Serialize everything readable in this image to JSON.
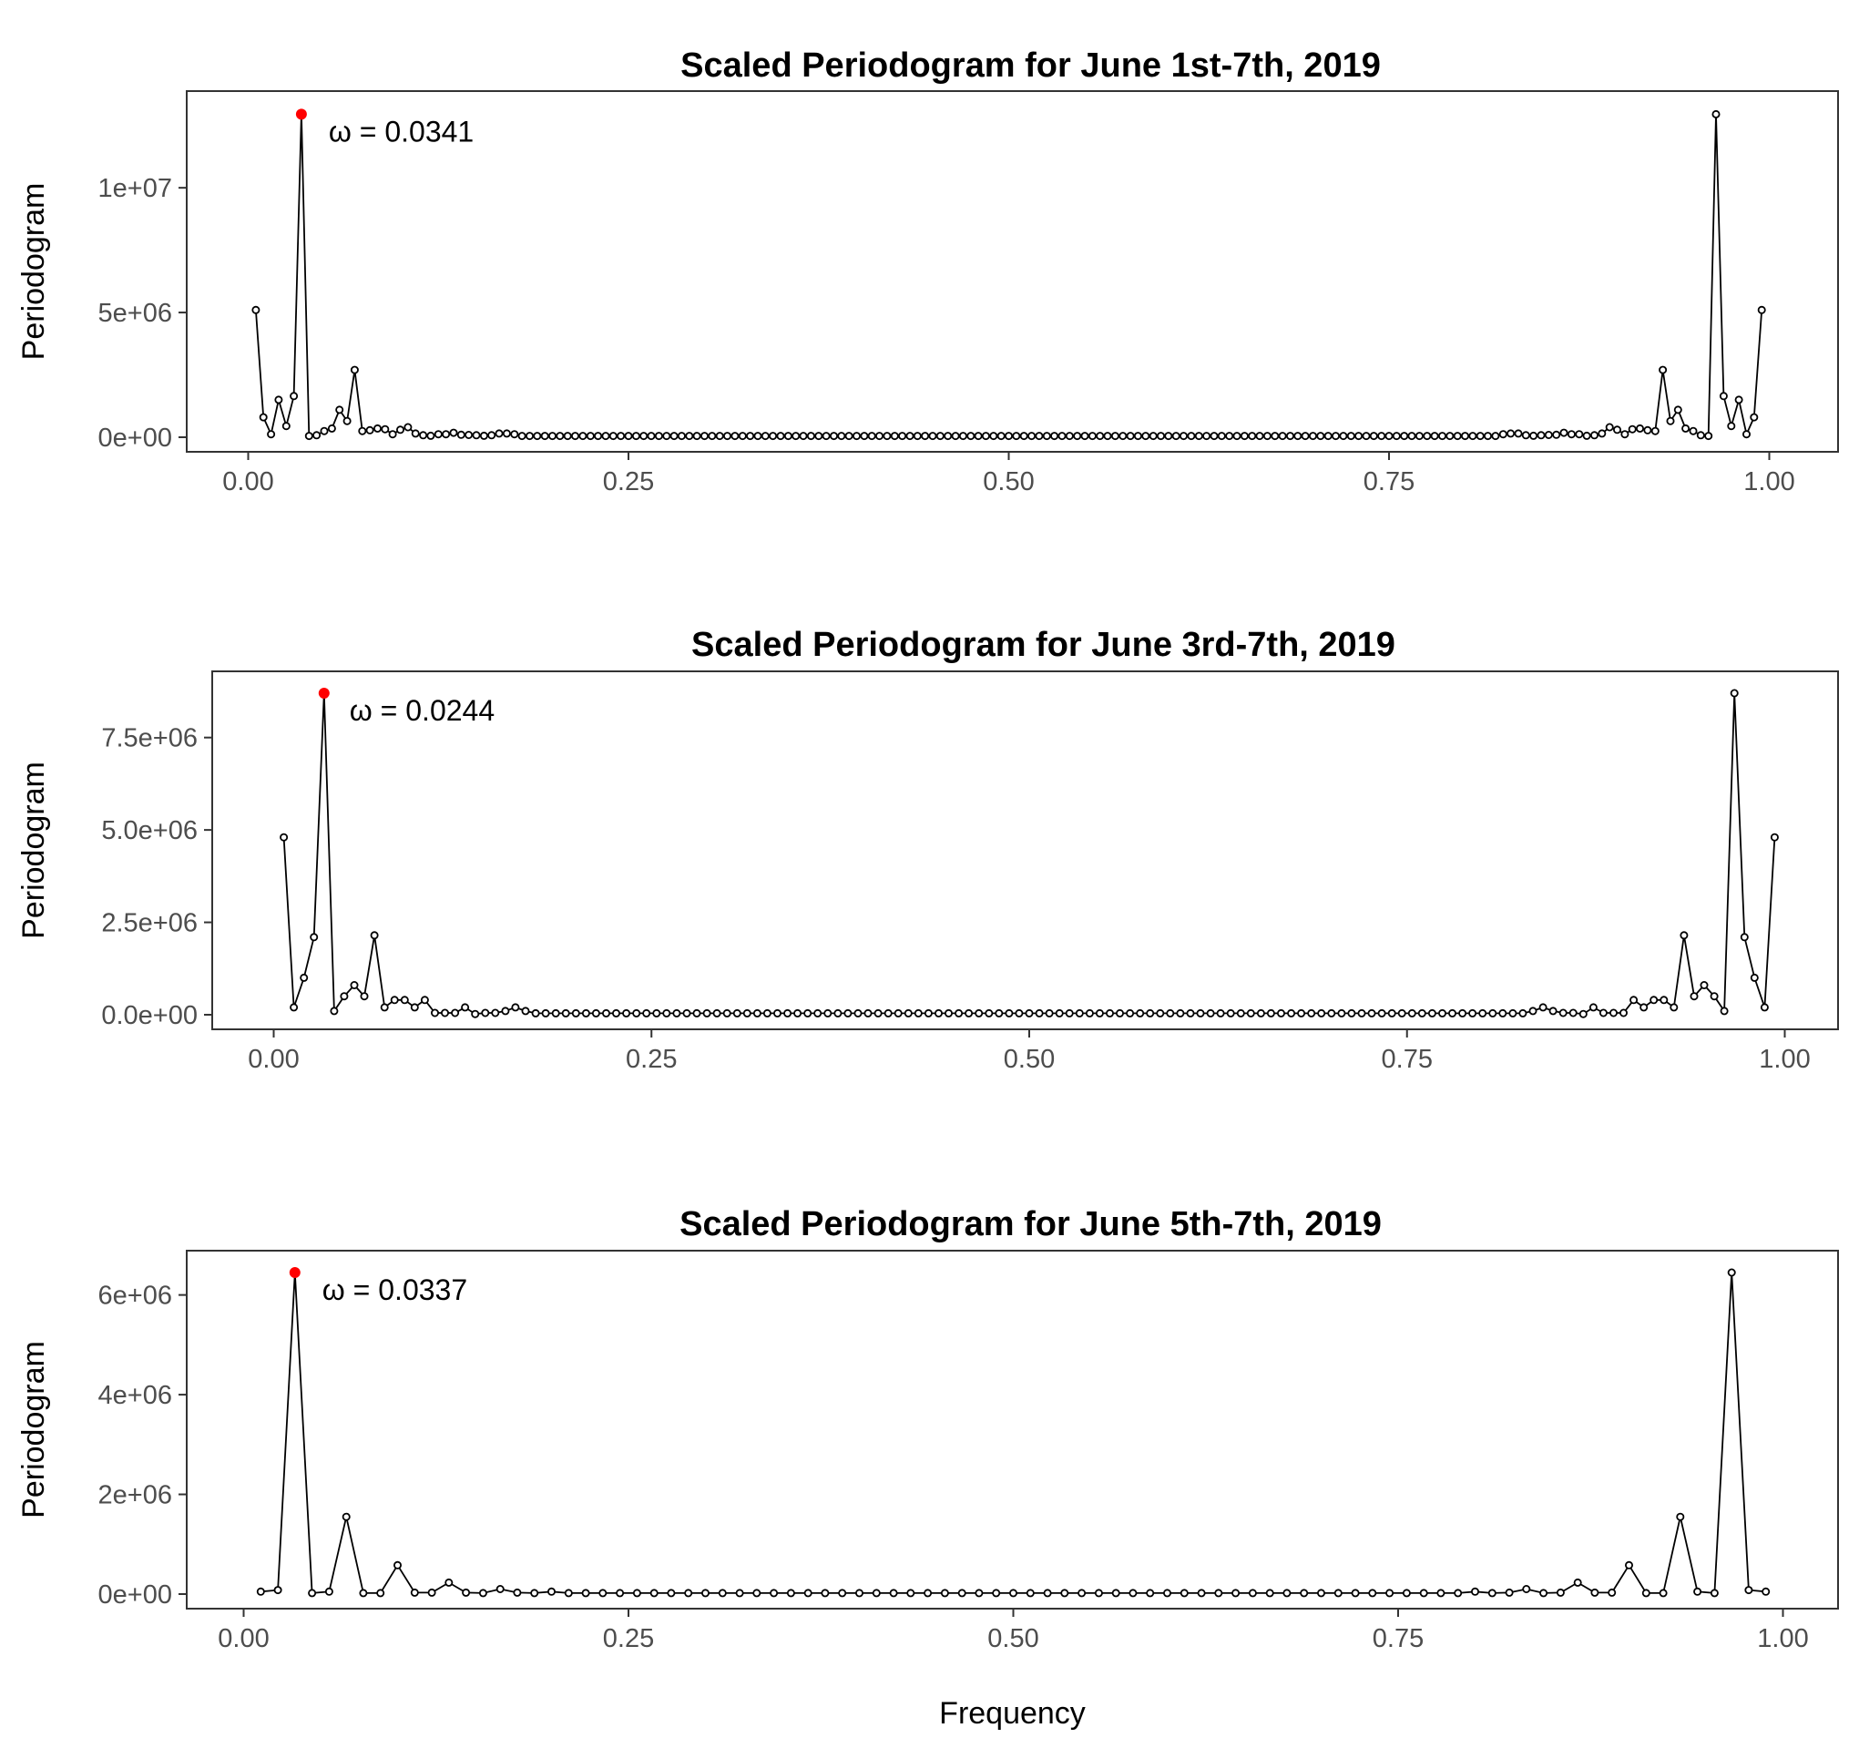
{
  "chart_data": [
    {
      "type": "line",
      "title": "Scaled Periodogram for June 1st-7th, 2019",
      "xlabel": "",
      "ylabel": "Periodogram",
      "xlim": [
        0,
        1
      ],
      "ylim": [
        0,
        13000000
      ],
      "x_ticks": [
        0,
        0.25,
        0.5,
        0.75,
        1.0
      ],
      "x_tick_labels": [
        "0.00",
        "0.25",
        "0.50",
        "0.75",
        "1.00"
      ],
      "y_ticks": [
        0,
        5000000,
        10000000
      ],
      "y_tick_labels": [
        "0e+00",
        "5e+06",
        "1e+07"
      ],
      "grid": false,
      "n_points": 199,
      "head_values": [
        5100000,
        800000,
        120000,
        1500000,
        450000,
        1650000,
        12950000,
        50000,
        80000,
        250000,
        350000,
        1100000,
        650000,
        2700000,
        250000,
        280000,
        350000,
        320000,
        120000,
        300000,
        400000,
        150000,
        80000,
        60000,
        120000,
        120000,
        180000,
        100000,
        90000,
        80000,
        60000,
        80000,
        150000,
        150000,
        120000
      ],
      "baseline_value": 50000,
      "peak": {
        "frequency": 0.0341,
        "value": 12950000,
        "label": "ω = 0.0341",
        "color": "#ff0000"
      }
    },
    {
      "type": "line",
      "title": "Scaled Periodogram for June 3rd-7th, 2019",
      "xlabel": "",
      "ylabel": "Periodogram",
      "xlim": [
        0,
        1
      ],
      "ylim": [
        0,
        8700000
      ],
      "x_ticks": [
        0,
        0.25,
        0.5,
        0.75,
        1.0
      ],
      "x_tick_labels": [
        "0.00",
        "0.25",
        "0.50",
        "0.75",
        "1.00"
      ],
      "y_ticks": [
        0,
        2500000,
        5000000,
        7500000
      ],
      "y_tick_labels": [
        "0.0e+00",
        "2.5e+06",
        "5.0e+06",
        "7.5e+06"
      ],
      "grid": false,
      "n_points": 149,
      "head_values": [
        4800000,
        200000,
        1000000,
        2100000,
        8700000,
        100000,
        500000,
        800000,
        500000,
        2150000,
        200000,
        400000,
        400000,
        200000,
        400000,
        50000,
        50000,
        50000,
        200000,
        20000,
        50000,
        50000,
        100000,
        200000,
        100000
      ],
      "baseline_value": 40000,
      "peak": {
        "frequency": 0.0244,
        "value": 8700000,
        "label": "ω = 0.0244",
        "color": "#ff0000"
      }
    },
    {
      "type": "line",
      "title": "Scaled Periodogram for June 5th-7th, 2019",
      "xlabel": "Frequency",
      "ylabel": "Periodogram",
      "xlim": [
        0,
        1
      ],
      "ylim": [
        0,
        6450000
      ],
      "x_ticks": [
        0,
        0.25,
        0.5,
        0.75,
        1.0
      ],
      "x_tick_labels": [
        "0.00",
        "0.25",
        "0.50",
        "0.75",
        "1.00"
      ],
      "y_ticks": [
        0,
        2000000,
        4000000,
        6000000
      ],
      "y_tick_labels": [
        "0e+00",
        "2e+06",
        "4e+06",
        "6e+06"
      ],
      "grid": false,
      "n_points": 89,
      "head_values": [
        50000,
        80000,
        6450000,
        20000,
        50000,
        1550000,
        20000,
        20000,
        580000,
        30000,
        30000,
        230000,
        30000,
        20000,
        100000,
        30000,
        20000,
        50000
      ],
      "baseline_value": 20000,
      "peak": {
        "frequency": 0.0337,
        "value": 6450000,
        "label": "ω = 0.0337",
        "color": "#ff0000"
      }
    }
  ]
}
